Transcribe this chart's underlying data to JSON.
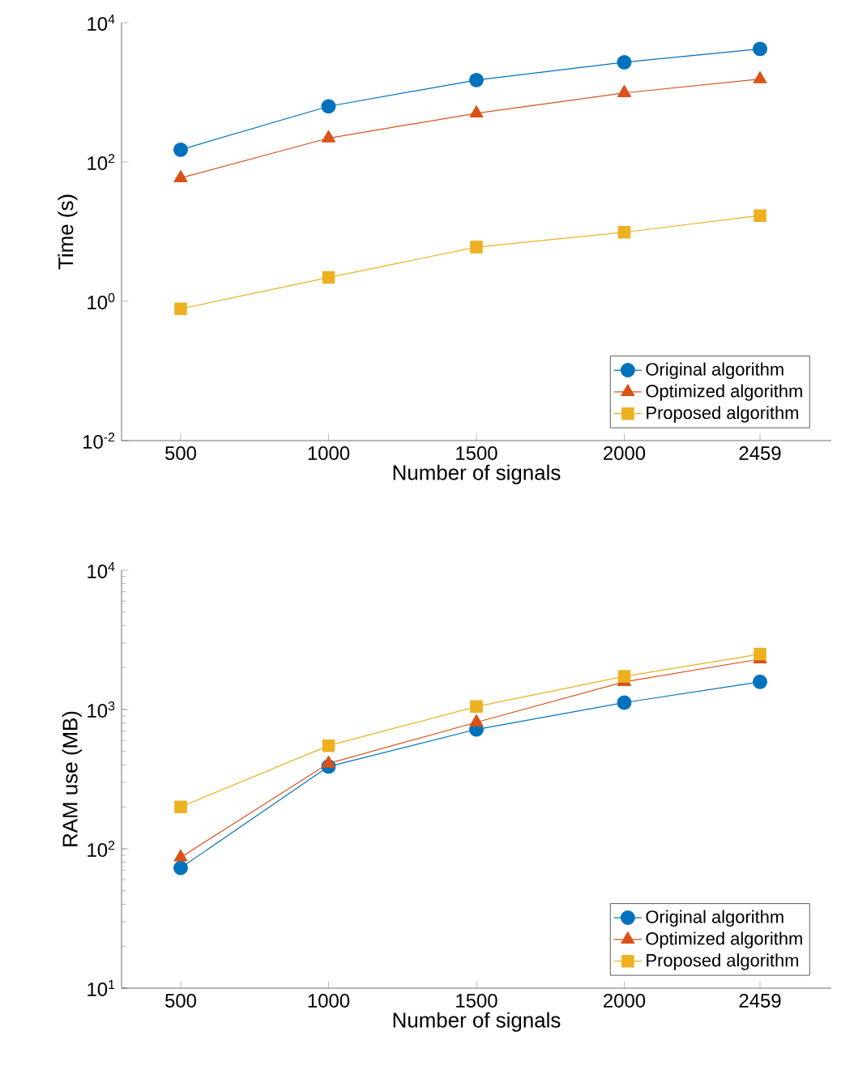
{
  "chart_data": [
    {
      "type": "line",
      "xlabel": "Number of signals",
      "ylabel": "Time (s)",
      "log": "y",
      "x": [
        500,
        1000,
        1500,
        2000,
        2459
      ],
      "xlim": [
        300,
        2700
      ],
      "xticks": [
        500,
        1000,
        1500,
        2000,
        2459
      ],
      "ylim": [
        0.01,
        10000
      ],
      "yticks": [
        {
          "value": 0.01,
          "label": "10$^{-2}$"
        },
        {
          "value": 1,
          "label": "10$^{0}$"
        },
        {
          "value": 100,
          "label": "10$^{2}$"
        },
        {
          "value": 10000,
          "label": "10$^{4}$"
        }
      ],
      "legend": "bottom right",
      "grid": false,
      "series": [
        {
          "name": "Original algorithm",
          "color": "#0072bd",
          "marker": "circle",
          "values": [
            150,
            630,
            1500,
            2700,
            4200
          ]
        },
        {
          "name": "Optimized algorithm",
          "color": "#d95319",
          "marker": "triangle",
          "values": [
            59,
            220,
            500,
            980,
            1550
          ]
        },
        {
          "name": "Proposed algorithm",
          "color": "#edb120",
          "marker": "square",
          "values": [
            0.78,
            2.2,
            6.0,
            9.8,
            17
          ]
        }
      ]
    },
    {
      "type": "line",
      "xlabel": "Number of signals",
      "ylabel": "RAM use (MB)",
      "log": "y",
      "x": [
        500,
        1000,
        1500,
        2000,
        2459
      ],
      "xlim": [
        300,
        2700
      ],
      "xticks": [
        500,
        1000,
        1500,
        2000,
        2459
      ],
      "ylim": [
        10,
        10000
      ],
      "yticks": [
        {
          "value": 10,
          "label": "10$^{1}$"
        },
        {
          "value": 100,
          "label": "10$^{2}$"
        },
        {
          "value": 1000,
          "label": "10$^{3}$"
        },
        {
          "value": 10000,
          "label": "10$^{4}$"
        }
      ],
      "legend": "bottom right",
      "grid": false,
      "series": [
        {
          "name": "Original algorithm",
          "color": "#0072bd",
          "marker": "circle",
          "values": [
            73,
            390,
            720,
            1120,
            1580
          ]
        },
        {
          "name": "Optimized algorithm",
          "color": "#d95319",
          "marker": "triangle",
          "values": [
            87,
            410,
            810,
            1580,
            2300
          ]
        },
        {
          "name": "Proposed algorithm",
          "color": "#edb120",
          "marker": "square",
          "values": [
            200,
            550,
            1050,
            1730,
            2500
          ]
        }
      ]
    }
  ]
}
